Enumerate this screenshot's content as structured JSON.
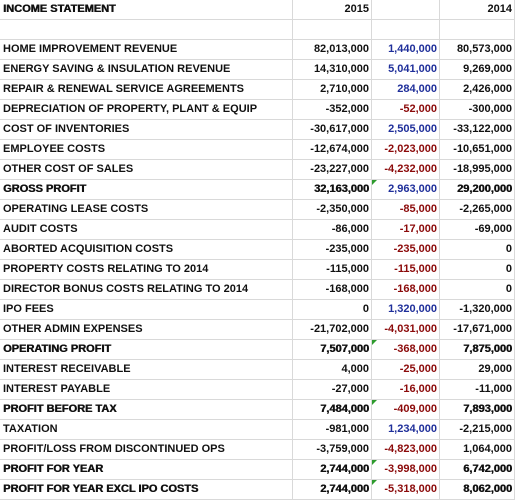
{
  "header": {
    "title": "INCOME STATEMENT",
    "col_2015": "2015",
    "col_2014": "2014"
  },
  "rows": [
    {
      "label": "HOME IMPROVEMENT REVENUE",
      "y2015": "82,013,000",
      "change": "1,440,000",
      "y2014": "80,573,000"
    },
    {
      "label": "ENERGY SAVING & INSULATION REVENUE",
      "y2015": "14,310,000",
      "change": "5,041,000",
      "y2014": "9,269,000"
    },
    {
      "label": "REPAIR & RENEWAL SERVICE AGREEMENTS",
      "y2015": "2,710,000",
      "change": "284,000",
      "y2014": "2,426,000"
    },
    {
      "label": "DEPRECIATION OF PROPERTY, PLANT & EQUIP",
      "y2015": "-352,000",
      "change": "-52,000",
      "y2014": "-300,000"
    },
    {
      "label": "COST OF INVENTORIES",
      "y2015": "-30,617,000",
      "change": "2,505,000",
      "y2014": "-33,122,000"
    },
    {
      "label": "EMPLOYEE COSTS",
      "y2015": "-12,674,000",
      "change": "-2,023,000",
      "y2014": "-10,651,000"
    },
    {
      "label": "OTHER COST OF SALES",
      "y2015": "-23,227,000",
      "change": "-4,232,000",
      "y2014": "-18,995,000"
    },
    {
      "label": "GROSS PROFIT",
      "y2015": "32,163,000",
      "change": "2,963,000",
      "y2014": "29,200,000",
      "bold": true
    },
    {
      "label": "OPERATING LEASE COSTS",
      "y2015": "-2,350,000",
      "change": "-85,000",
      "y2014": "-2,265,000"
    },
    {
      "label": "AUDIT COSTS",
      "y2015": "-86,000",
      "change": "-17,000",
      "y2014": "-69,000"
    },
    {
      "label": "ABORTED ACQUISITION COSTS",
      "y2015": "-235,000",
      "change": "-235,000",
      "y2014": "0"
    },
    {
      "label": "PROPERTY COSTS RELATING TO 2014",
      "y2015": "-115,000",
      "change": "-115,000",
      "y2014": "0"
    },
    {
      "label": "DIRECTOR BONUS COSTS RELATING TO 2014",
      "y2015": "-168,000",
      "change": "-168,000",
      "y2014": "0"
    },
    {
      "label": "IPO FEES",
      "y2015": "0",
      "change": "1,320,000",
      "y2014": "-1,320,000"
    },
    {
      "label": "OTHER ADMIN EXPENSES",
      "y2015": "-21,702,000",
      "change": "-4,031,000",
      "y2014": "-17,671,000"
    },
    {
      "label": "OPERATING PROFIT",
      "y2015": "7,507,000",
      "change": "-368,000",
      "y2014": "7,875,000",
      "bold": true
    },
    {
      "label": "INTEREST RECEIVABLE",
      "y2015": "4,000",
      "change": "-25,000",
      "y2014": "29,000"
    },
    {
      "label": "INTEREST PAYABLE",
      "y2015": "-27,000",
      "change": "-16,000",
      "y2014": "-11,000"
    },
    {
      "label": "PROFIT BEFORE TAX",
      "y2015": "7,484,000",
      "change": "-409,000",
      "y2014": "7,893,000",
      "bold": true
    },
    {
      "label": "TAXATION",
      "y2015": "-981,000",
      "change": "1,234,000",
      "y2014": "-2,215,000"
    },
    {
      "label": "PROFIT/LOSS FROM DISCONTINUED OPS",
      "y2015": "-3,759,000",
      "change": "-4,823,000",
      "y2014": "1,064,000"
    },
    {
      "label": "PROFIT FOR YEAR",
      "y2015": "2,744,000",
      "change": "-3,998,000",
      "y2014": "6,742,000",
      "bold": true
    },
    {
      "label": "PROFIT FOR YEAR EXCL IPO COSTS",
      "y2015": "2,744,000",
      "change": "-5,318,000",
      "y2014": "8,062,000",
      "bold": true
    }
  ]
}
